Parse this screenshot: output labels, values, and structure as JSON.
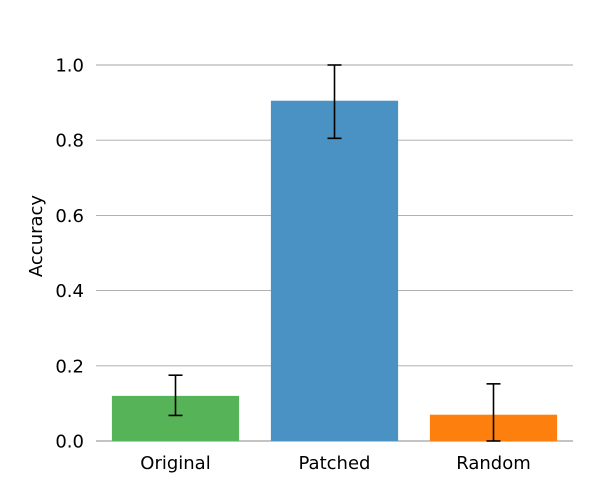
{
  "chart_data": {
    "type": "bar",
    "title": "",
    "xlabel": "",
    "ylabel": "Accuracy",
    "categories": [
      "Original",
      "Patched",
      "Random"
    ],
    "values": [
      0.12,
      0.905,
      0.07
    ],
    "error_low": [
      0.068,
      0.805,
      0.0
    ],
    "error_high": [
      0.175,
      1.0,
      0.152
    ],
    "colors": [
      "#57b357",
      "#4a92c4",
      "#fd7f0e"
    ],
    "ylim": [
      0,
      1.0
    ],
    "yticks": [
      "0.0",
      "0.2",
      "0.4",
      "0.6",
      "0.8",
      "1.0"
    ],
    "grid": "horizontal",
    "legend": "none"
  }
}
